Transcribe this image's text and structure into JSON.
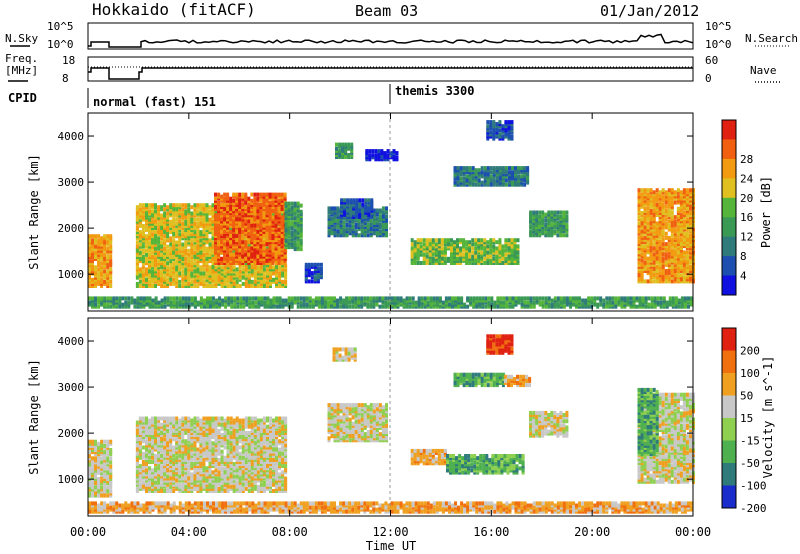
{
  "header": {
    "station": "Hokkaido (fitACF)",
    "beam": "Beam 03",
    "date": "01/Jan/2012"
  },
  "noise_panel": {
    "left_label": "N.Sky",
    "right_label": "N.Search",
    "left_ticks": [
      "10^5",
      "10^0"
    ],
    "right_ticks": [
      "10^5",
      "10^0"
    ]
  },
  "freq_panel": {
    "left_label_1": "Freq.",
    "left_label_2": "[MHz]",
    "left_ticks": [
      "18",
      "8"
    ],
    "right_label": "Nave",
    "right_ticks": [
      "60",
      "0"
    ]
  },
  "cpid_panel": {
    "label": "CPID",
    "modes": [
      {
        "name": "normal (fast) 151",
        "start_hour": 0
      },
      {
        "name": "themis 3300",
        "start_hour": 12
      }
    ]
  },
  "x_axis": {
    "label": "Time UT",
    "ticks": [
      "00:00",
      "04:00",
      "08:00",
      "12:00",
      "16:00",
      "20:00",
      "00:00"
    ]
  },
  "chart_data": [
    {
      "type": "heatmap",
      "name": "power",
      "ylabel": "Slant Range [km]",
      "yticks": [
        "1000",
        "2000",
        "3000",
        "4000"
      ],
      "ylim": [
        200,
        4500
      ],
      "xlim_hours": [
        0,
        24
      ],
      "colorbar": {
        "label": "Power [dB]",
        "ticks": [
          "4",
          "8",
          "12",
          "16",
          "20",
          "24",
          "28"
        ],
        "colors": [
          "#1010e0",
          "#1c4fb0",
          "#2f7a7a",
          "#3a9a55",
          "#55b53a",
          "#e0c020",
          "#f29a10",
          "#f06010",
          "#e02010"
        ]
      },
      "regions": [
        {
          "t0": 0.0,
          "t1": 0.9,
          "r0": 700,
          "r1": 1800,
          "level": 6
        },
        {
          "t0": 1.9,
          "t1": 7.8,
          "r0": 700,
          "r1": 2500,
          "level": 5
        },
        {
          "t0": 5.0,
          "t1": 7.8,
          "r0": 1200,
          "r1": 2700,
          "level": 7
        },
        {
          "t0": 7.8,
          "t1": 8.5,
          "r0": 1500,
          "r1": 2500,
          "level": 3
        },
        {
          "t0": 8.6,
          "t1": 9.3,
          "r0": 800,
          "r1": 1200,
          "level": 1
        },
        {
          "t0": 9.5,
          "t1": 11.8,
          "r0": 1800,
          "r1": 2400,
          "level": 2
        },
        {
          "t0": 10.0,
          "t1": 11.2,
          "r0": 2200,
          "r1": 2600,
          "level": 1
        },
        {
          "t0": 9.8,
          "t1": 10.4,
          "r0": 3500,
          "r1": 3800,
          "level": 3
        },
        {
          "t0": 11.0,
          "t1": 12.2,
          "r0": 3450,
          "r1": 3650,
          "level": 0
        },
        {
          "t0": 12.8,
          "t1": 17.0,
          "r0": 1200,
          "r1": 1700,
          "level": 4
        },
        {
          "t0": 14.5,
          "t1": 17.5,
          "r0": 2900,
          "r1": 3300,
          "level": 2
        },
        {
          "t0": 17.5,
          "t1": 19.0,
          "r0": 1800,
          "r1": 2300,
          "level": 3
        },
        {
          "t0": 15.8,
          "t1": 16.8,
          "r0": 3900,
          "r1": 4300,
          "level": 1
        },
        {
          "t0": 21.8,
          "t1": 24.0,
          "r0": 800,
          "r1": 2800,
          "level": 6
        },
        {
          "t0": 0.0,
          "t1": 24.0,
          "r0": 250,
          "r1": 450,
          "level": 3
        }
      ]
    },
    {
      "type": "heatmap",
      "name": "velocity",
      "ylabel": "Slant Range [km]",
      "yticks": [
        "1000",
        "2000",
        "3000",
        "4000"
      ],
      "ylim": [
        200,
        4500
      ],
      "xlim_hours": [
        0,
        24
      ],
      "colorbar": {
        "label": "Velocity [m s^-1]",
        "ticks": [
          "200",
          "100",
          "50",
          "15",
          "-15",
          "-50",
          "-100",
          "-200"
        ],
        "colors": [
          "#1a2ccc",
          "#2f7a7a",
          "#4fb04f",
          "#8fd050",
          "#c8c8c8",
          "#f0a020",
          "#f07010",
          "#e02010"
        ]
      },
      "regions": [
        {
          "t0": 0.0,
          "t1": 0.9,
          "r0": 600,
          "r1": 1800,
          "level": 4
        },
        {
          "t0": 1.9,
          "t1": 7.9,
          "r0": 700,
          "r1": 2300,
          "level": 4
        },
        {
          "t0": 9.5,
          "t1": 11.8,
          "r0": 1800,
          "r1": 2600,
          "level": 4
        },
        {
          "t0": 9.7,
          "t1": 10.6,
          "r0": 3550,
          "r1": 3800,
          "level": 4
        },
        {
          "t0": 12.8,
          "t1": 14.2,
          "r0": 1300,
          "r1": 1600,
          "level": 5
        },
        {
          "t0": 14.2,
          "t1": 17.3,
          "r0": 1100,
          "r1": 1500,
          "level": 2
        },
        {
          "t0": 14.5,
          "t1": 16.5,
          "r0": 3000,
          "r1": 3250,
          "level": 2
        },
        {
          "t0": 16.5,
          "t1": 17.5,
          "r0": 3000,
          "r1": 3200,
          "level": 5
        },
        {
          "t0": 15.8,
          "t1": 16.8,
          "r0": 3700,
          "r1": 4100,
          "level": 7
        },
        {
          "t0": 17.5,
          "t1": 19.0,
          "r0": 1900,
          "r1": 2400,
          "level": 4
        },
        {
          "t0": 21.8,
          "t1": 24.0,
          "r0": 900,
          "r1": 2800,
          "level": 4
        },
        {
          "t0": 21.8,
          "t1": 22.6,
          "r0": 1500,
          "r1": 2900,
          "level": 2
        },
        {
          "t0": 0.0,
          "t1": 24.0,
          "r0": 250,
          "r1": 450,
          "level": 5
        }
      ]
    }
  ],
  "colors": {
    "frame": "#000000",
    "background": "#ffffff",
    "dashed_marker": "#999999"
  }
}
